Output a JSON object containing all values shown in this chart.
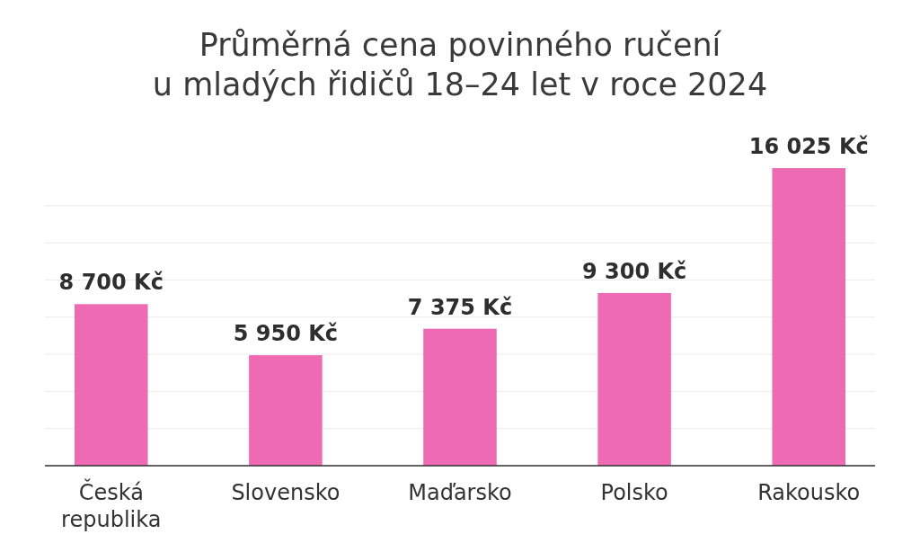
{
  "chart_data": {
    "type": "bar",
    "title": "Průměrná cena povinného ručení\nu mladých řidičů 18–24 let v roce 2024",
    "categories": [
      "Česká republika",
      "Slovensko",
      "Maďarsko",
      "Polsko",
      "Rakousko"
    ],
    "values": [
      8700,
      5950,
      7375,
      9300,
      16025
    ],
    "value_labels": [
      "8 700 Kč",
      "5 950 Kč",
      "7 375 Kč",
      "9 300 Kč",
      "16 025 Kč"
    ],
    "color": "#ee6ab2",
    "yticks": [
      {
        "value": 0,
        "label": null
      },
      {
        "value": 2000,
        "label": null
      },
      {
        "value": 4000,
        "label": null
      },
      {
        "value": 6000,
        "label": null
      },
      {
        "value": 8000,
        "label": null
      },
      {
        "value": 10000,
        "label": null
      },
      {
        "value": 12000,
        "label": null
      },
      {
        "value": 14000,
        "label": null
      }
    ],
    "grid": "y",
    "tick_labels": "x"
  }
}
